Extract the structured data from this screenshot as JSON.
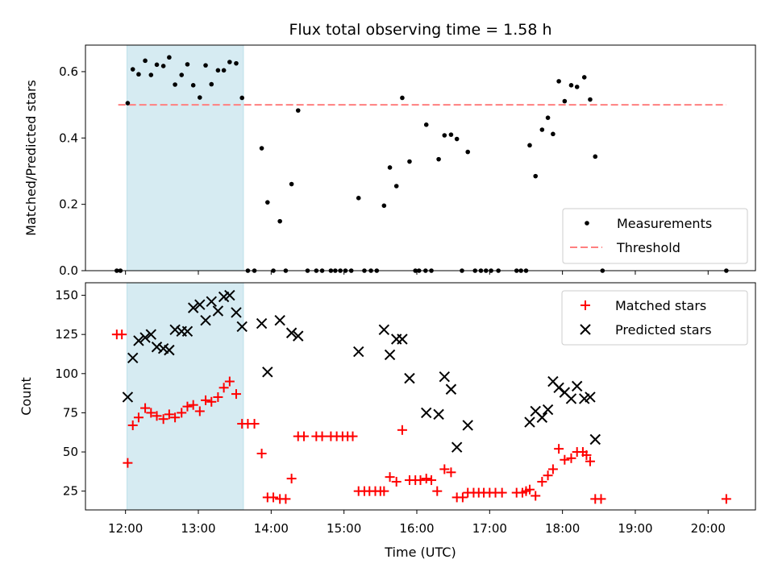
{
  "chart_data": {
    "title": "Flux total observing time = 1.58 h",
    "xlabel": "Time (UTC)",
    "x_unit": "hours UTC",
    "xlim": [
      11.45,
      20.65
    ],
    "x_tick_values": [
      12,
      13,
      14,
      15,
      16,
      17,
      18,
      19,
      20
    ],
    "x_tick_labels": [
      "12:00",
      "13:00",
      "14:00",
      "15:00",
      "16:00",
      "17:00",
      "18:00",
      "19:00",
      "20:00"
    ],
    "highlight_span": {
      "x": [
        12.02,
        13.62
      ],
      "color": "#add8e6"
    },
    "panels": [
      {
        "type": "scatter",
        "ylabel": "Matched/Predicted stars",
        "ylim": [
          0,
          0.68
        ],
        "y_ticks": [
          0.0,
          0.2,
          0.4,
          0.6
        ],
        "y_tick_labels": [
          "0.0",
          "0.2",
          "0.4",
          "0.6"
        ],
        "legend_position": "lower right",
        "threshold": {
          "name": "Threshold",
          "value": 0.5,
          "x_range": [
            11.9,
            20.25
          ],
          "color": "#ff7f7f"
        },
        "series": [
          {
            "name": "Measurements",
            "color": "#000000",
            "marker": "dot",
            "points": [
              [
                11.88,
                0
              ],
              [
                11.93,
                0
              ],
              [
                12.03,
                0.505
              ],
              [
                12.1,
                0.607
              ],
              [
                12.18,
                0.592
              ],
              [
                12.27,
                0.633
              ],
              [
                12.35,
                0.59
              ],
              [
                12.43,
                0.621
              ],
              [
                12.52,
                0.617
              ],
              [
                12.6,
                0.643
              ],
              [
                12.68,
                0.561
              ],
              [
                12.77,
                0.59
              ],
              [
                12.85,
                0.622
              ],
              [
                12.93,
                0.559
              ],
              [
                13.02,
                0.522
              ],
              [
                13.1,
                0.619
              ],
              [
                13.18,
                0.562
              ],
              [
                13.27,
                0.604
              ],
              [
                13.35,
                0.604
              ],
              [
                13.43,
                0.629
              ],
              [
                13.52,
                0.625
              ],
              [
                13.6,
                0.521
              ],
              [
                13.68,
                0
              ],
              [
                13.77,
                0
              ],
              [
                13.87,
                0.369
              ],
              [
                13.95,
                0.206
              ],
              [
                14.03,
                0
              ],
              [
                14.12,
                0.149
              ],
              [
                14.2,
                0
              ],
              [
                14.28,
                0.261
              ],
              [
                14.37,
                0.483
              ],
              [
                14.5,
                0
              ],
              [
                14.62,
                0
              ],
              [
                14.7,
                0
              ],
              [
                14.82,
                0
              ],
              [
                14.88,
                0
              ],
              [
                14.95,
                0
              ],
              [
                15.02,
                0
              ],
              [
                15.1,
                0
              ],
              [
                15.2,
                0.219
              ],
              [
                15.28,
                0
              ],
              [
                15.37,
                0
              ],
              [
                15.45,
                0
              ],
              [
                15.55,
                0.196
              ],
              [
                15.63,
                0.311
              ],
              [
                15.72,
                0.255
              ],
              [
                15.8,
                0.521
              ],
              [
                15.9,
                0.329
              ],
              [
                15.98,
                0
              ],
              [
                16.03,
                0
              ],
              [
                16.12,
                0
              ],
              [
                16.13,
                0.44
              ],
              [
                16.2,
                0
              ],
              [
                16.3,
                0.336
              ],
              [
                16.38,
                0.408
              ],
              [
                16.47,
                0.41
              ],
              [
                16.55,
                0.397
              ],
              [
                16.62,
                0
              ],
              [
                16.7,
                0.358
              ],
              [
                16.8,
                0
              ],
              [
                16.88,
                0
              ],
              [
                16.95,
                0
              ],
              [
                17.02,
                0
              ],
              [
                17.12,
                0
              ],
              [
                17.37,
                0
              ],
              [
                17.43,
                0
              ],
              [
                17.5,
                0
              ],
              [
                17.55,
                0.378
              ],
              [
                17.63,
                0.285
              ],
              [
                17.72,
                0.425
              ],
              [
                17.8,
                0.461
              ],
              [
                17.87,
                0.412
              ],
              [
                17.95,
                0.571
              ],
              [
                18.03,
                0.511
              ],
              [
                18.12,
                0.559
              ],
              [
                18.2,
                0.554
              ],
              [
                18.3,
                0.583
              ],
              [
                18.38,
                0.516
              ],
              [
                18.45,
                0.344
              ],
              [
                18.55,
                0
              ],
              [
                20.25,
                0
              ]
            ]
          }
        ]
      },
      {
        "type": "scatter",
        "ylabel": "Count",
        "ylim": [
          13,
          158
        ],
        "y_ticks": [
          25,
          50,
          75,
          100,
          125,
          150
        ],
        "y_tick_labels": [
          "25",
          "50",
          "75",
          "100",
          "125",
          "150"
        ],
        "legend_position": "upper right",
        "series": [
          {
            "name": "Matched stars",
            "color": "#ff0000",
            "marker": "plus",
            "points": [
              [
                11.88,
                125
              ],
              [
                11.95,
                125
              ],
              [
                12.03,
                43
              ],
              [
                12.1,
                67
              ],
              [
                12.18,
                72
              ],
              [
                12.27,
                78
              ],
              [
                12.35,
                75
              ],
              [
                12.43,
                73
              ],
              [
                12.52,
                71
              ],
              [
                12.6,
                74
              ],
              [
                12.68,
                72
              ],
              [
                12.77,
                75
              ],
              [
                12.85,
                79
              ],
              [
                12.93,
                80
              ],
              [
                13.02,
                76
              ],
              [
                13.1,
                83
              ],
              [
                13.18,
                82
              ],
              [
                13.27,
                85
              ],
              [
                13.35,
                91
              ],
              [
                13.43,
                95
              ],
              [
                13.52,
                87
              ],
              [
                13.6,
                68
              ],
              [
                13.68,
                68
              ],
              [
                13.77,
                68
              ],
              [
                13.87,
                49
              ],
              [
                13.95,
                21
              ],
              [
                14.03,
                21
              ],
              [
                14.12,
                20
              ],
              [
                14.2,
                20
              ],
              [
                14.28,
                33
              ],
              [
                14.37,
                60
              ],
              [
                14.45,
                60
              ],
              [
                14.62,
                60
              ],
              [
                14.7,
                60
              ],
              [
                14.82,
                60
              ],
              [
                14.9,
                60
              ],
              [
                14.98,
                60
              ],
              [
                15.05,
                60
              ],
              [
                15.12,
                60
              ],
              [
                15.2,
                25
              ],
              [
                15.28,
                25
              ],
              [
                15.35,
                25
              ],
              [
                15.43,
                25
              ],
              [
                15.5,
                25
              ],
              [
                15.55,
                25
              ],
              [
                15.63,
                34
              ],
              [
                15.72,
                31
              ],
              [
                15.8,
                64
              ],
              [
                15.9,
                32
              ],
              [
                15.98,
                32
              ],
              [
                16.05,
                32
              ],
              [
                16.13,
                33
              ],
              [
                16.2,
                32
              ],
              [
                16.28,
                25
              ],
              [
                16.38,
                39
              ],
              [
                16.47,
                37
              ],
              [
                16.55,
                21
              ],
              [
                16.63,
                21
              ],
              [
                16.7,
                24
              ],
              [
                16.78,
                24
              ],
              [
                16.85,
                24
              ],
              [
                16.92,
                24
              ],
              [
                17.0,
                24
              ],
              [
                17.08,
                24
              ],
              [
                17.17,
                24
              ],
              [
                17.37,
                24
              ],
              [
                17.45,
                24
              ],
              [
                17.5,
                25
              ],
              [
                17.55,
                26
              ],
              [
                17.63,
                22
              ],
              [
                17.72,
                31
              ],
              [
                17.8,
                35
              ],
              [
                17.87,
                39
              ],
              [
                17.95,
                52
              ],
              [
                18.03,
                45
              ],
              [
                18.12,
                46
              ],
              [
                18.2,
                50
              ],
              [
                18.28,
                50
              ],
              [
                18.33,
                48
              ],
              [
                18.38,
                44
              ],
              [
                18.45,
                20
              ],
              [
                18.53,
                20
              ],
              [
                20.25,
                20
              ]
            ]
          },
          {
            "name": "Predicted stars",
            "color": "#000000",
            "marker": "x",
            "points": [
              [
                12.03,
                85
              ],
              [
                12.1,
                110
              ],
              [
                12.18,
                121
              ],
              [
                12.27,
                123
              ],
              [
                12.35,
                125
              ],
              [
                12.43,
                117
              ],
              [
                12.52,
                116
              ],
              [
                12.6,
                115
              ],
              [
                12.68,
                128
              ],
              [
                12.77,
                127
              ],
              [
                12.85,
                127
              ],
              [
                12.93,
                142
              ],
              [
                13.02,
                144
              ],
              [
                13.1,
                134
              ],
              [
                13.18,
                146
              ],
              [
                13.27,
                140
              ],
              [
                13.35,
                149
              ],
              [
                13.43,
                150
              ],
              [
                13.52,
                139
              ],
              [
                13.6,
                130
              ],
              [
                13.87,
                132
              ],
              [
                13.95,
                101
              ],
              [
                14.12,
                134
              ],
              [
                14.28,
                126
              ],
              [
                14.37,
                124
              ],
              [
                15.2,
                114
              ],
              [
                15.55,
                128
              ],
              [
                15.63,
                112
              ],
              [
                15.72,
                122
              ],
              [
                15.8,
                122
              ],
              [
                15.9,
                97
              ],
              [
                16.13,
                75
              ],
              [
                16.3,
                74
              ],
              [
                16.38,
                98
              ],
              [
                16.47,
                90
              ],
              [
                16.55,
                53
              ],
              [
                16.7,
                67
              ],
              [
                17.55,
                69
              ],
              [
                17.63,
                76
              ],
              [
                17.72,
                72
              ],
              [
                17.8,
                77
              ],
              [
                17.87,
                95
              ],
              [
                17.95,
                91
              ],
              [
                18.03,
                88
              ],
              [
                18.12,
                84
              ],
              [
                18.2,
                92
              ],
              [
                18.3,
                84
              ],
              [
                18.38,
                85
              ],
              [
                18.45,
                58
              ]
            ]
          }
        ]
      }
    ]
  }
}
